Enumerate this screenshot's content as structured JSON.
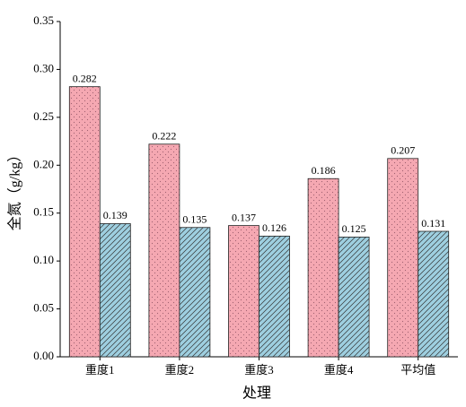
{
  "chart_data": {
    "type": "bar",
    "x_label": "处理",
    "y_label": "全氮（g/kg）",
    "categories": [
      "重度1",
      "重度2",
      "重度3",
      "重度4",
      "平均值"
    ],
    "series": [
      {
        "color": "#f5a8b2",
        "pattern": "dots",
        "values": [
          0.282,
          0.222,
          0.137,
          0.186,
          0.207
        ]
      },
      {
        "color": "#9ecfe0",
        "pattern": "hatch",
        "values": [
          0.139,
          0.135,
          0.126,
          0.125,
          0.131
        ]
      }
    ],
    "ylim": [
      0,
      0.35
    ],
    "yticks": [
      {
        "value": 0,
        "label": "0.00"
      },
      {
        "value": 0.05,
        "label": "0.05"
      },
      {
        "value": 0.1,
        "label": "0.10"
      },
      {
        "value": 0.15,
        "label": "0.15"
      },
      {
        "value": 0.2,
        "label": "0.20"
      },
      {
        "value": 0.25,
        "label": "0.25"
      },
      {
        "value": 0.3,
        "label": "0.30"
      },
      {
        "value": 0.35,
        "label": "0.35"
      }
    ]
  }
}
